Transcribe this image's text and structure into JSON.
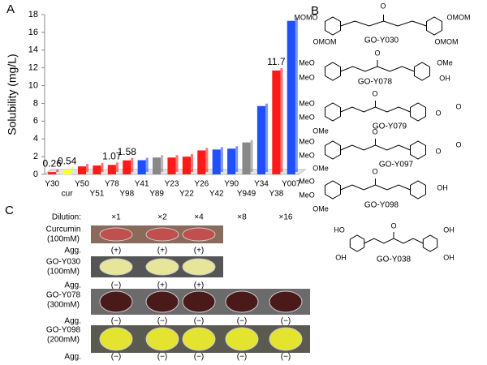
{
  "chart_data": {
    "type": "bar",
    "panel": "A",
    "ylabel": "Solubility (mg/L)",
    "categories": [
      "Y30",
      "cur",
      "Y50",
      "Y51",
      "Y78",
      "Y98",
      "Y41",
      "Y89",
      "Y23",
      "Y22",
      "Y26",
      "Y42",
      "Y90",
      "Y949",
      "Y34",
      "Y38",
      "Y007"
    ],
    "values": [
      0.26,
      0.54,
      0.9,
      1.0,
      1.07,
      1.58,
      1.6,
      1.9,
      1.9,
      2.0,
      2.7,
      2.8,
      2.9,
      3.6,
      7.7,
      11.7,
      17.3
    ],
    "value_labels": [
      "0.26",
      "0.54",
      null,
      null,
      "1.07",
      "1.58",
      null,
      null,
      null,
      null,
      null,
      null,
      null,
      null,
      null,
      "11.7",
      null
    ],
    "colors": [
      "#ff1a1a",
      "#ffff33",
      "#ff1a1a",
      "#ff1a1a",
      "#ff1a1a",
      "#ff1a1a",
      "#1f4fff",
      "#888888",
      "#ff1a1a",
      "#ff1a1a",
      "#ff1a1a",
      "#1f4fff",
      "#1f4fff",
      "#888888",
      "#1f4fff",
      "#ff1a1a",
      "#1f4fff"
    ],
    "ylim": [
      0,
      18
    ],
    "yticks": [
      0,
      2,
      4,
      6,
      8,
      10,
      12,
      14,
      16,
      18
    ],
    "grid": false
  },
  "panel_b": {
    "panel": "B",
    "structures": [
      {
        "label": "GO-Y030",
        "atoms": [
          "MOMO",
          "OMOM",
          "OMOM",
          "OMOM",
          "O"
        ]
      },
      {
        "label": "GO-Y078",
        "atoms": [
          "MeO",
          "MeO",
          "OMe",
          "OH",
          "O"
        ]
      },
      {
        "label": "GO-Y079",
        "atoms": [
          "MeO",
          "MeO",
          "OMe",
          "O",
          "O",
          "O"
        ]
      },
      {
        "label": "GO-Y097",
        "atoms": [
          "MeO",
          "MeO",
          "OMe",
          "O",
          "O",
          "O"
        ]
      },
      {
        "label": "GO-Y098",
        "atoms": [
          "MeO",
          "MeO",
          "OMe",
          "O",
          "OH"
        ]
      },
      {
        "label": "GO-Y038",
        "atoms": [
          "HO",
          "OH",
          "OH",
          "OH",
          "O"
        ]
      }
    ]
  },
  "panel_c": {
    "panel": "C",
    "dilution_label": "Dilution:",
    "dilutions": [
      "×1",
      "×2",
      "×4",
      "×8",
      "×16"
    ],
    "rows": [
      {
        "name": "Curcumin",
        "conc": "(100mM)",
        "agg_label": "Agg.",
        "agg": [
          "(+)",
          "(+)",
          "(+)"
        ]
      },
      {
        "name": "GO-Y030",
        "conc": "(100mM)",
        "agg_label": "Agg.",
        "agg": [
          "(−)",
          "(+)",
          "(+)"
        ]
      },
      {
        "name": "GO-Y078",
        "conc": "(300mM)",
        "agg_label": "Agg.",
        "agg": [
          "(−)",
          "(−)",
          "(−)",
          "(−)",
          "(−)"
        ]
      },
      {
        "name": "GO-Y098",
        "conc": "(200mM)",
        "agg_label": "Agg.",
        "agg": [
          "(−)",
          "(−)",
          "(−)",
          "(−)",
          "(−)"
        ]
      }
    ]
  }
}
